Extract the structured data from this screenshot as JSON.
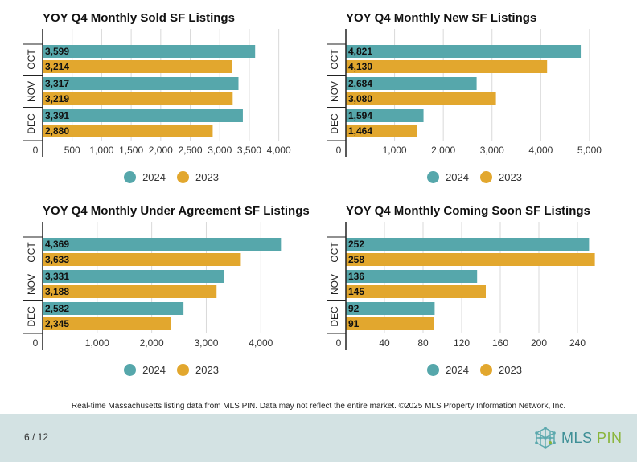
{
  "chart_data": [
    {
      "type": "bar",
      "orientation": "horizontal",
      "title": "YOY Q4 Monthly Sold SF Listings",
      "categories": [
        "OCT",
        "NOV",
        "DEC"
      ],
      "series": [
        {
          "name": "2024",
          "values": [
            3599,
            3317,
            3391
          ],
          "labels": [
            "3,599",
            "3,317",
            "3,391"
          ],
          "color": "#56a7ab"
        },
        {
          "name": "2023",
          "values": [
            3214,
            3219,
            2880
          ],
          "labels": [
            "3,214",
            "3,219",
            "2,880"
          ],
          "color": "#e2a72e"
        }
      ],
      "xlim": [
        0,
        4250
      ],
      "ticks": [
        0,
        500,
        1000,
        1500,
        2000,
        2500,
        3000,
        3500,
        4000
      ],
      "tick_labels": [
        "0",
        "500",
        "1,000",
        "1,500",
        "2,000",
        "2,500",
        "3,000",
        "3,500",
        "4,000"
      ],
      "grid": true,
      "legend": "bottom-center"
    },
    {
      "type": "bar",
      "orientation": "horizontal",
      "title": "YOY Q4 Monthly New SF Listings",
      "categories": [
        "OCT",
        "NOV",
        "DEC"
      ],
      "series": [
        {
          "name": "2024",
          "values": [
            4821,
            2684,
            1594
          ],
          "labels": [
            "4,821",
            "2,684",
            "1,594"
          ],
          "color": "#56a7ab"
        },
        {
          "name": "2023",
          "values": [
            4130,
            3080,
            1464
          ],
          "labels": [
            "4,130",
            "3,080",
            "1,464"
          ],
          "color": "#e2a72e"
        }
      ],
      "xlim": [
        0,
        5150
      ],
      "ticks": [
        0,
        1000,
        2000,
        3000,
        4000,
        5000
      ],
      "tick_labels": [
        "0",
        "1,000",
        "2,000",
        "3,000",
        "4,000",
        "5,000"
      ],
      "grid": true,
      "legend": "bottom-center"
    },
    {
      "type": "bar",
      "orientation": "horizontal",
      "title": "YOY Q4 Monthly Under Agreement SF Listings",
      "categories": [
        "OCT",
        "NOV",
        "DEC"
      ],
      "series": [
        {
          "name": "2024",
          "values": [
            4369,
            3331,
            2582
          ],
          "labels": [
            "4,369",
            "3,331",
            "2,582"
          ],
          "color": "#56a7ab"
        },
        {
          "name": "2023",
          "values": [
            3633,
            3188,
            2345
          ],
          "labels": [
            "3,633",
            "3,188",
            "2,345"
          ],
          "color": "#e2a72e"
        }
      ],
      "xlim": [
        0,
        4600
      ],
      "ticks": [
        0,
        1000,
        2000,
        3000,
        4000
      ],
      "tick_labels": [
        "0",
        "1,000",
        "2,000",
        "3,000",
        "4,000"
      ],
      "grid": true,
      "legend": "bottom-center"
    },
    {
      "type": "bar",
      "orientation": "horizontal",
      "title": "YOY Q4 Monthly Coming Soon SF Listings",
      "categories": [
        "OCT",
        "NOV",
        "DEC"
      ],
      "series": [
        {
          "name": "2024",
          "values": [
            252,
            136,
            92
          ],
          "labels": [
            "252",
            "136",
            "92"
          ],
          "color": "#56a7ab"
        },
        {
          "name": "2023",
          "values": [
            258,
            145,
            91
          ],
          "labels": [
            "258",
            "145",
            "91"
          ],
          "color": "#e2a72e"
        }
      ],
      "xlim": [
        0,
        260
      ],
      "ticks": [
        0,
        40,
        80,
        120,
        160,
        200,
        240
      ],
      "tick_labels": [
        "0",
        "40",
        "80",
        "120",
        "160",
        "200",
        "240"
      ],
      "grid": true,
      "legend": "bottom-center"
    }
  ],
  "footnote": "Real-time Massachusetts listing data from MLS PIN. Data may not reflect the entire market. ©2025 MLS Property Information Network, Inc.",
  "footer": {
    "page_number": "6 / 12",
    "logo": {
      "text_mls": "MLS",
      "text_pin": "PIN",
      "icon": "network-cube-icon"
    }
  }
}
